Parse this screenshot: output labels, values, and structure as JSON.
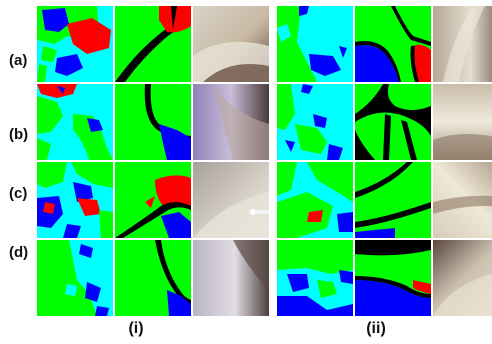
{
  "row_labels": [
    "(a)",
    "(b)",
    "(c)",
    "(d)"
  ],
  "group_labels": [
    "(i)",
    "(ii)"
  ],
  "colors": {
    "green": "#00ff00",
    "cyan": "#00ffff",
    "red": "#ff0000",
    "blue": "#0000ff",
    "black": "#000000"
  },
  "panels": [
    {
      "row": 0,
      "group": 0,
      "kind": "prediction-map"
    },
    {
      "row": 0,
      "group": 0,
      "kind": "ground-truth-map"
    },
    {
      "row": 0,
      "group": 0,
      "kind": "endoscopy-photo"
    },
    {
      "row": 0,
      "group": 1,
      "kind": "prediction-map"
    },
    {
      "row": 0,
      "group": 1,
      "kind": "ground-truth-map"
    },
    {
      "row": 0,
      "group": 1,
      "kind": "endoscopy-photo"
    }
  ]
}
